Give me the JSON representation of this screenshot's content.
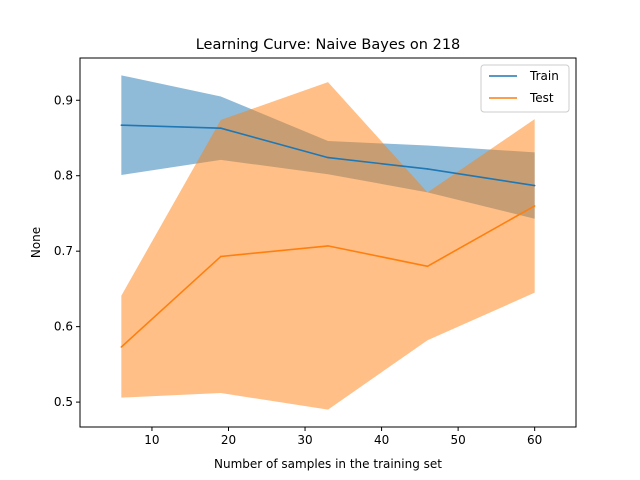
{
  "chart_data": {
    "type": "line",
    "title": "Learning Curve: Naive Bayes on 218",
    "xlabel": "Number of samples in the training set",
    "ylabel": "None",
    "xlim": [
      0.6,
      65.4
    ],
    "ylim": [
      0.467,
      0.956
    ],
    "x_ticks": [
      10,
      20,
      30,
      40,
      50,
      60
    ],
    "y_ticks": [
      0.5,
      0.6,
      0.7,
      0.8,
      0.9
    ],
    "legend_position": "top-right",
    "series": [
      {
        "name": "Train",
        "color": "#1f77b4",
        "band_color": "#1f77b4",
        "x": [
          6,
          19,
          33,
          46,
          60
        ],
        "values": [
          0.867,
          0.863,
          0.824,
          0.809,
          0.787
        ],
        "lower": [
          0.801,
          0.821,
          0.802,
          0.778,
          0.743
        ],
        "upper": [
          0.933,
          0.905,
          0.846,
          0.84,
          0.831
        ]
      },
      {
        "name": "Test",
        "color": "#ff7f0e",
        "band_color": "#ff7f0e",
        "x": [
          6,
          19,
          33,
          46,
          60
        ],
        "values": [
          0.573,
          0.693,
          0.707,
          0.68,
          0.76
        ],
        "lower": [
          0.506,
          0.512,
          0.49,
          0.582,
          0.645
        ],
        "upper": [
          0.641,
          0.874,
          0.924,
          0.778,
          0.875
        ]
      }
    ]
  }
}
